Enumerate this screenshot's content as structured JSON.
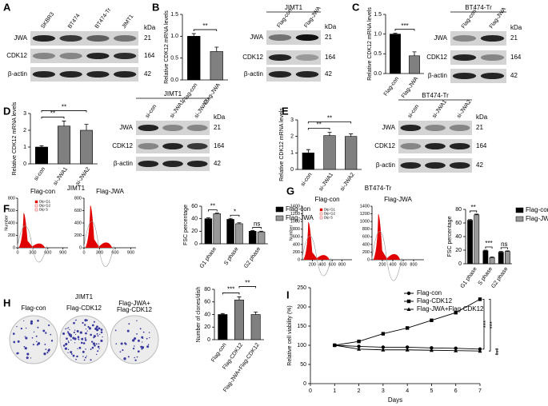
{
  "panel_letters": [
    "A",
    "B",
    "C",
    "D",
    "E",
    "F",
    "G",
    "H",
    "I"
  ],
  "blots": [
    {
      "lanes": [
        "SKBR3",
        "BT474",
        "BT474-Tr",
        "JIMT1"
      ],
      "rows": [
        "JWA",
        "CDK12",
        "β-actin"
      ],
      "kda_label": "kDa",
      "kda": [
        21,
        164,
        42
      ]
    },
    {
      "title": "JIMT1",
      "lanes": [
        "Flag-con",
        "Flag-JWA"
      ],
      "rows": [
        "JWA",
        "CDK12",
        "β-actin"
      ],
      "kda_label": "kDa",
      "kda": [
        21,
        164,
        42
      ]
    },
    {
      "title": "BT474-Tr",
      "lanes": [
        "Flag-con",
        "Flag-JWA"
      ],
      "rows": [
        "JWA",
        "CDK12",
        "β-actin"
      ],
      "kda_label": "kDa",
      "kda": [
        21,
        164,
        42
      ]
    },
    {
      "title": "JIMT1",
      "lanes": [
        "si-con",
        "si-JWA1",
        "si-JWA2"
      ],
      "rows": [
        "JWA",
        "CDK12",
        "β-actin"
      ],
      "kda_label": "kDa",
      "kda": [
        21,
        164,
        42
      ]
    },
    {
      "title": "BT474-Tr",
      "lanes": [
        "si-con",
        "si-JWA1",
        "si-JWA2"
      ],
      "rows": [
        "JWA",
        "CDK12",
        "β-actin"
      ],
      "kda_label": "kDa",
      "kda": [
        21,
        164,
        42
      ]
    }
  ],
  "flow": [
    {
      "cell_line": "JIMT1",
      "samples": [
        "Flag-con",
        "Flag-JWA"
      ],
      "ylabel": "Number",
      "yticks": [
        0,
        200,
        400,
        600,
        800
      ],
      "ylim": [
        0,
        800
      ],
      "xticks": [
        0,
        300,
        600,
        900
      ],
      "xlim": [
        0,
        1000
      ],
      "legend": [
        "Dip G1",
        "Dip G2",
        "Dip S"
      ]
    },
    {
      "cell_line": "BT474-Tr",
      "samples": [
        "Flag-con",
        "Flag-JWA"
      ],
      "ylabel": "Number",
      "yticks": [
        0,
        200,
        400,
        600,
        800,
        1000,
        1200,
        1400
      ],
      "ylim": [
        0,
        1400
      ],
      "xticks": [
        200,
        400,
        600,
        800
      ],
      "xlim": [
        0,
        1000
      ],
      "legend": [
        "Dip G1",
        "Dip G2",
        "Dip S"
      ]
    }
  ],
  "colonies": {
    "cell_line": "JIMT1",
    "samples": [
      "Flag-con",
      "Flag-CDK12",
      "Flag-JWA+\nFlag-CDK12"
    ]
  },
  "chart_data": [
    {
      "type": "bar",
      "ylabel": "Relative CDK12 mRNA levels",
      "categories": [
        "Flag-con",
        "Flag-JWA"
      ],
      "values": [
        1.0,
        0.65
      ],
      "errors": [
        0.06,
        0.1
      ],
      "colors": [
        "#000000",
        "#808080"
      ],
      "ylim": [
        0,
        1.5
      ],
      "yticks": [
        {
          "value": 0,
          "label": "0.0"
        },
        0.5,
        {
          "value": 1,
          "label": "1.0"
        },
        1.5
      ],
      "annotations": [
        "**"
      ]
    },
    {
      "type": "bar",
      "ylabel": "Relative CDK12 mRNA levels",
      "categories": [
        "Flag-con",
        "Flag-JWA"
      ],
      "values": [
        1.0,
        0.45
      ],
      "errors": [
        0.02,
        0.1
      ],
      "colors": [
        "#000000",
        "#808080"
      ],
      "ylim": [
        0,
        1.5
      ],
      "yticks": [
        {
          "value": 0,
          "label": "0.0"
        },
        0.5,
        {
          "value": 1,
          "label": "1.0"
        },
        1.5
      ],
      "annotations": [
        "***"
      ]
    },
    {
      "type": "bar",
      "ylabel": "Relative CDK12 mRNA levels",
      "categories": [
        "si-con",
        "si-JWA1",
        "si-JWA2"
      ],
      "values": [
        1.0,
        2.25,
        2.0
      ],
      "errors": [
        0.08,
        0.3,
        0.35
      ],
      "colors": [
        "#000000",
        "#808080",
        "#808080"
      ],
      "ylim": [
        0,
        3
      ],
      "yticks": [
        0,
        1,
        2,
        3
      ],
      "annotations": [
        "**",
        "**"
      ]
    },
    {
      "type": "bar",
      "ylabel": "Relative CDK12 mRNA levels",
      "categories": [
        "si-con",
        "si-JWA1",
        "si-JWA2"
      ],
      "values": [
        1.0,
        2.05,
        2.0
      ],
      "errors": [
        0.2,
        0.2,
        0.15
      ],
      "colors": [
        "#000000",
        "#808080",
        "#808080"
      ],
      "ylim": [
        0,
        3
      ],
      "yticks": [
        0,
        1,
        2,
        3
      ],
      "annotations": [
        "**",
        "**"
      ]
    },
    {
      "type": "grouped",
      "ylabel": "FSC percentage",
      "categories": [
        "G1 phase",
        "S phase",
        "G2 phase"
      ],
      "series": [
        {
          "name": "Flag-con",
          "color": "#000000",
          "values": [
            40,
            39,
            20
          ],
          "errors": [
            1.5,
            1.5,
            1
          ]
        },
        {
          "name": "Flag-JWA",
          "color": "#999999",
          "values": [
            48,
            32,
            19
          ],
          "errors": [
            1,
            1.5,
            1
          ]
        }
      ],
      "ylim": [
        0,
        60
      ],
      "yticks": [
        0,
        20,
        40,
        60
      ],
      "annotations": [
        "**",
        "*",
        "ns"
      ]
    },
    {
      "type": "grouped",
      "ylabel": "FSC percentage",
      "categories": [
        "G1 phase",
        "S phase",
        "G2 phase"
      ],
      "series": [
        {
          "name": "Flag-con",
          "color": "#000000",
          "values": [
            64,
            19,
            17
          ],
          "errors": [
            1,
            1,
            1
          ]
        },
        {
          "name": "Flag-JWA",
          "color": "#999999",
          "values": [
            72,
            9,
            18
          ],
          "errors": [
            1,
            1,
            1
          ]
        }
      ],
      "ylim": [
        0,
        80
      ],
      "yticks": [
        0,
        20,
        40,
        60,
        80
      ],
      "annotations": [
        "**",
        "***",
        "ns"
      ]
    },
    {
      "type": "bar",
      "ylabel": "Number of clones/dish",
      "categories": [
        "Flag-con",
        "Flag-CDK12",
        "Flag-JWA+Flag-CDK12"
      ],
      "values": [
        40,
        63,
        40
      ],
      "errors": [
        1.5,
        5,
        4
      ],
      "colors": [
        "#000000",
        "#808080",
        "#808080"
      ],
      "ylim": [
        0,
        80
      ],
      "yticks": [
        0,
        20,
        40,
        60,
        80
      ],
      "annotations": [
        "***",
        "**"
      ]
    },
    {
      "type": "line",
      "ylabel": "Relative cell viability (%)",
      "xlabel": "Days",
      "x": [
        1,
        2,
        3,
        4,
        5,
        6,
        7
      ],
      "series": [
        {
          "name": "Flag-con",
          "marker": "circle",
          "color": "#000000",
          "values": [
            100,
            97,
            95,
            95,
            93,
            92,
            90
          ]
        },
        {
          "name": "Flag-CDK12",
          "marker": "square",
          "color": "#000000",
          "values": [
            100,
            110,
            130,
            145,
            165,
            185,
            220
          ]
        },
        {
          "name": "Flag-JWA+Flag-CDK12",
          "marker": "triangle",
          "color": "#000000",
          "values": [
            100,
            90,
            88,
            88,
            87,
            86,
            85
          ]
        }
      ],
      "xlim": [
        0,
        7
      ],
      "xticks": [
        0,
        1,
        2,
        3,
        4,
        5,
        6,
        7
      ],
      "ylim": [
        0,
        250
      ],
      "yticks": [
        0,
        50,
        100,
        150,
        200,
        250
      ],
      "annotations": [
        "***",
        "***",
        "***"
      ]
    }
  ]
}
